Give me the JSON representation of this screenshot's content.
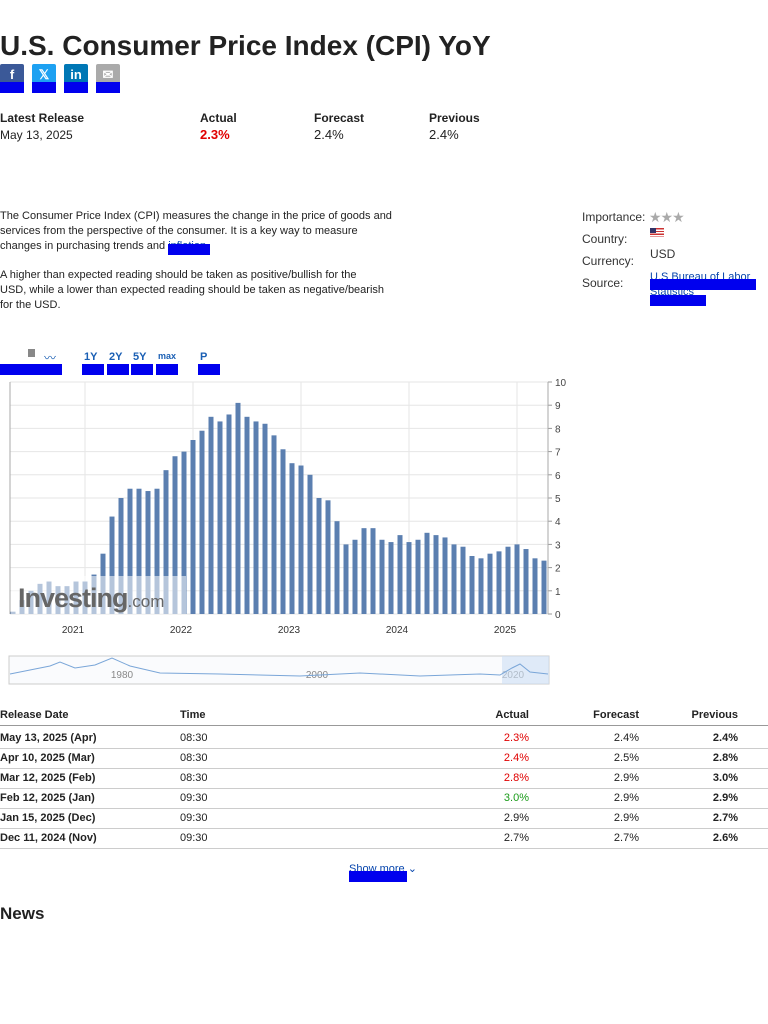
{
  "header": {
    "title": "U.S. Consumer Price Index (CPI) YoY"
  },
  "release": {
    "label": "Latest Release",
    "date": "May 13, 2025",
    "actual_label": "Actual",
    "actual": "2.3%",
    "forecast_label": "Forecast",
    "forecast": "2.4%",
    "previous_label": "Previous",
    "previous": "2.4%"
  },
  "description": {
    "p1": "The Consumer Price Index (CPI) measures the change in the price of goods and services from the perspective of the consumer. It is a key way to measure changes in purchasing trends and",
    "p1_link": "inflation",
    "p2": "A higher than expected reading should be taken as positive/bullish for the USD, while a lower than expected reading should be taken as negative/bearish for the USD."
  },
  "details": {
    "importance_label": "Importance:",
    "country_label": "Country:",
    "currency_label": "Currency:",
    "currency": "USD",
    "source_label": "Source:",
    "source": "U.S Bureau of Labor Statistics"
  },
  "toolbar": {
    "ranges": [
      "1Y",
      "2Y",
      "5Y",
      "max",
      "P"
    ]
  },
  "chart": {
    "type": "bar",
    "color": "#5b7fb0",
    "grid": true,
    "categories": [
      null,
      null,
      null,
      null,
      null,
      null,
      null,
      null,
      "2021",
      null,
      null,
      null,
      null,
      null,
      null,
      null,
      null,
      null,
      null,
      null,
      "2022",
      null,
      null,
      null,
      null,
      null,
      null,
      null,
      null,
      null,
      null,
      null,
      "2023",
      null,
      null,
      null,
      null,
      null,
      null,
      null,
      null,
      null,
      null,
      null,
      "2024",
      null,
      null,
      null,
      null,
      null,
      null,
      null,
      null,
      null,
      null,
      null,
      "2025",
      null,
      null,
      null
    ],
    "values": [
      0.1,
      0.6,
      1.0,
      1.3,
      1.4,
      1.2,
      1.2,
      1.4,
      1.4,
      1.7,
      2.6,
      4.2,
      5.0,
      5.4,
      5.4,
      5.3,
      5.4,
      6.2,
      6.8,
      7.0,
      7.5,
      7.9,
      8.5,
      8.3,
      8.6,
      9.1,
      8.5,
      8.3,
      8.2,
      7.7,
      7.1,
      6.5,
      6.4,
      6.0,
      5.0,
      4.9,
      4.0,
      3.0,
      3.2,
      3.7,
      3.7,
      3.2,
      3.1,
      3.4,
      3.1,
      3.2,
      3.5,
      3.4,
      3.3,
      3.0,
      2.9,
      2.5,
      2.4,
      2.6,
      2.7,
      2.9,
      3.0,
      2.8,
      2.4,
      2.3
    ],
    "ylim": [
      0,
      10
    ],
    "yticks": [
      0,
      1,
      2,
      3,
      4,
      5,
      6,
      7,
      8,
      9,
      10
    ],
    "watermark": [
      "Investing",
      ".com"
    ],
    "navigator_labels": [
      "1980",
      "2000",
      "2020"
    ]
  },
  "table": {
    "header": [
      "Release Date",
      "Time",
      "Actual",
      "Forecast",
      "Previous"
    ],
    "rows": [
      [
        "May 13, 2025 (Apr)",
        "08:30",
        "2.3%",
        "2.4%",
        "2.4%"
      ],
      [
        "Apr 10, 2025 (Mar)",
        "08:30",
        "2.4%",
        "2.5%",
        "2.8%"
      ],
      [
        "Mar 12, 2025 (Feb)",
        "08:30",
        "2.8%",
        "2.9%",
        "3.0%"
      ],
      [
        "Feb 12, 2025 (Jan)",
        "09:30",
        "3.0%",
        "2.9%",
        "2.9%"
      ],
      [
        "Jan 15, 2025 (Dec)",
        "09:30",
        "2.9%",
        "2.9%",
        "2.7%"
      ],
      [
        "Dec 11, 2024 (Nov)",
        "09:30",
        "2.7%",
        "2.7%",
        "2.6%"
      ]
    ],
    "actual_colors": [
      "#e00000",
      "#e00000",
      "#e00000",
      "#1a9c1a",
      "#222222",
      "#222222"
    ]
  },
  "show_more": "Show more",
  "news": {
    "title": "News"
  }
}
